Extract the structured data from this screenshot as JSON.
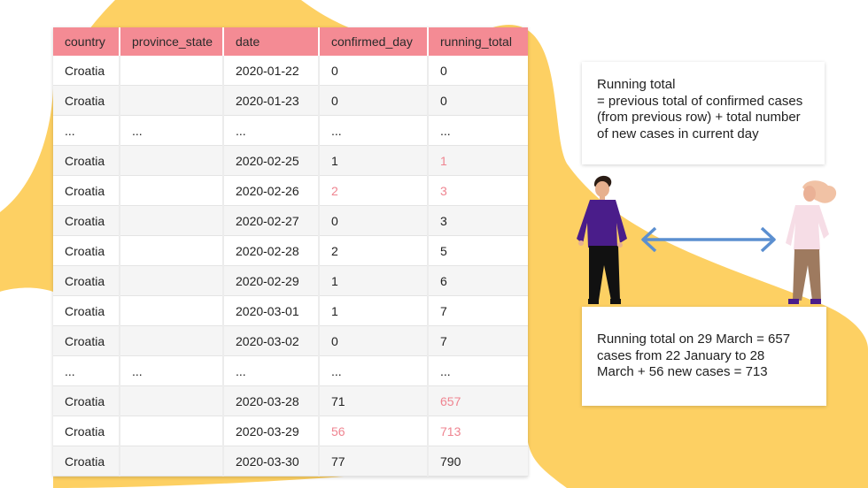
{
  "table": {
    "columns": [
      "country",
      "province_state",
      "date",
      "confirmed_day",
      "running_total"
    ],
    "rows": [
      {
        "country": "Croatia",
        "province_state": "",
        "date": "2020-01-22",
        "confirmed_day": "0",
        "running_total": "0"
      },
      {
        "country": "Croatia",
        "province_state": "",
        "date": "2020-01-23",
        "confirmed_day": "0",
        "running_total": "0"
      },
      {
        "country": "...",
        "province_state": "...",
        "date": "...",
        "confirmed_day": "...",
        "running_total": "..."
      },
      {
        "country": "Croatia",
        "province_state": "",
        "date": "2020-02-25",
        "confirmed_day": "1",
        "running_total": "1",
        "highlight": [
          "running_total"
        ]
      },
      {
        "country": "Croatia",
        "province_state": "",
        "date": "2020-02-26",
        "confirmed_day": "2",
        "running_total": "3",
        "highlight": [
          "confirmed_day",
          "running_total"
        ]
      },
      {
        "country": "Croatia",
        "province_state": "",
        "date": "2020-02-27",
        "confirmed_day": "0",
        "running_total": "3"
      },
      {
        "country": "Croatia",
        "province_state": "",
        "date": "2020-02-28",
        "confirmed_day": "2",
        "running_total": "5"
      },
      {
        "country": "Croatia",
        "province_state": "",
        "date": "2020-02-29",
        "confirmed_day": "1",
        "running_total": "6"
      },
      {
        "country": "Croatia",
        "province_state": "",
        "date": "2020-03-01",
        "confirmed_day": "1",
        "running_total": "7"
      },
      {
        "country": "Croatia",
        "province_state": "",
        "date": "2020-03-02",
        "confirmed_day": "0",
        "running_total": "7"
      },
      {
        "country": "...",
        "province_state": "...",
        "date": "...",
        "confirmed_day": "...",
        "running_total": "..."
      },
      {
        "country": "Croatia",
        "province_state": "",
        "date": "2020-03-28",
        "confirmed_day": "71",
        "running_total": "657",
        "highlight": [
          "running_total"
        ]
      },
      {
        "country": "Croatia",
        "province_state": "",
        "date": "2020-03-29",
        "confirmed_day": "56",
        "running_total": "713",
        "highlight": [
          "confirmed_day",
          "running_total"
        ]
      },
      {
        "country": "Croatia",
        "province_state": "",
        "date": "2020-03-30",
        "confirmed_day": "77",
        "running_total": "790"
      }
    ]
  },
  "notes": {
    "definition": {
      "lines": [
        "Running total",
        "= previous total of confirmed cases",
        "(from previous row) + total number",
        "of new cases in current day"
      ]
    },
    "example": {
      "lines": [
        "Running total on 29 March = 657",
        "cases from 22 January to 28",
        "March + 56 new cases = 713"
      ]
    }
  },
  "colors": {
    "header": "#f48b94",
    "highlight_text": "#ef8490",
    "background_blob": "#fdd063",
    "arrow": "#5b8fd0"
  },
  "icons": [
    "man-figure-icon",
    "woman-figure-icon",
    "double-arrow-icon"
  ]
}
